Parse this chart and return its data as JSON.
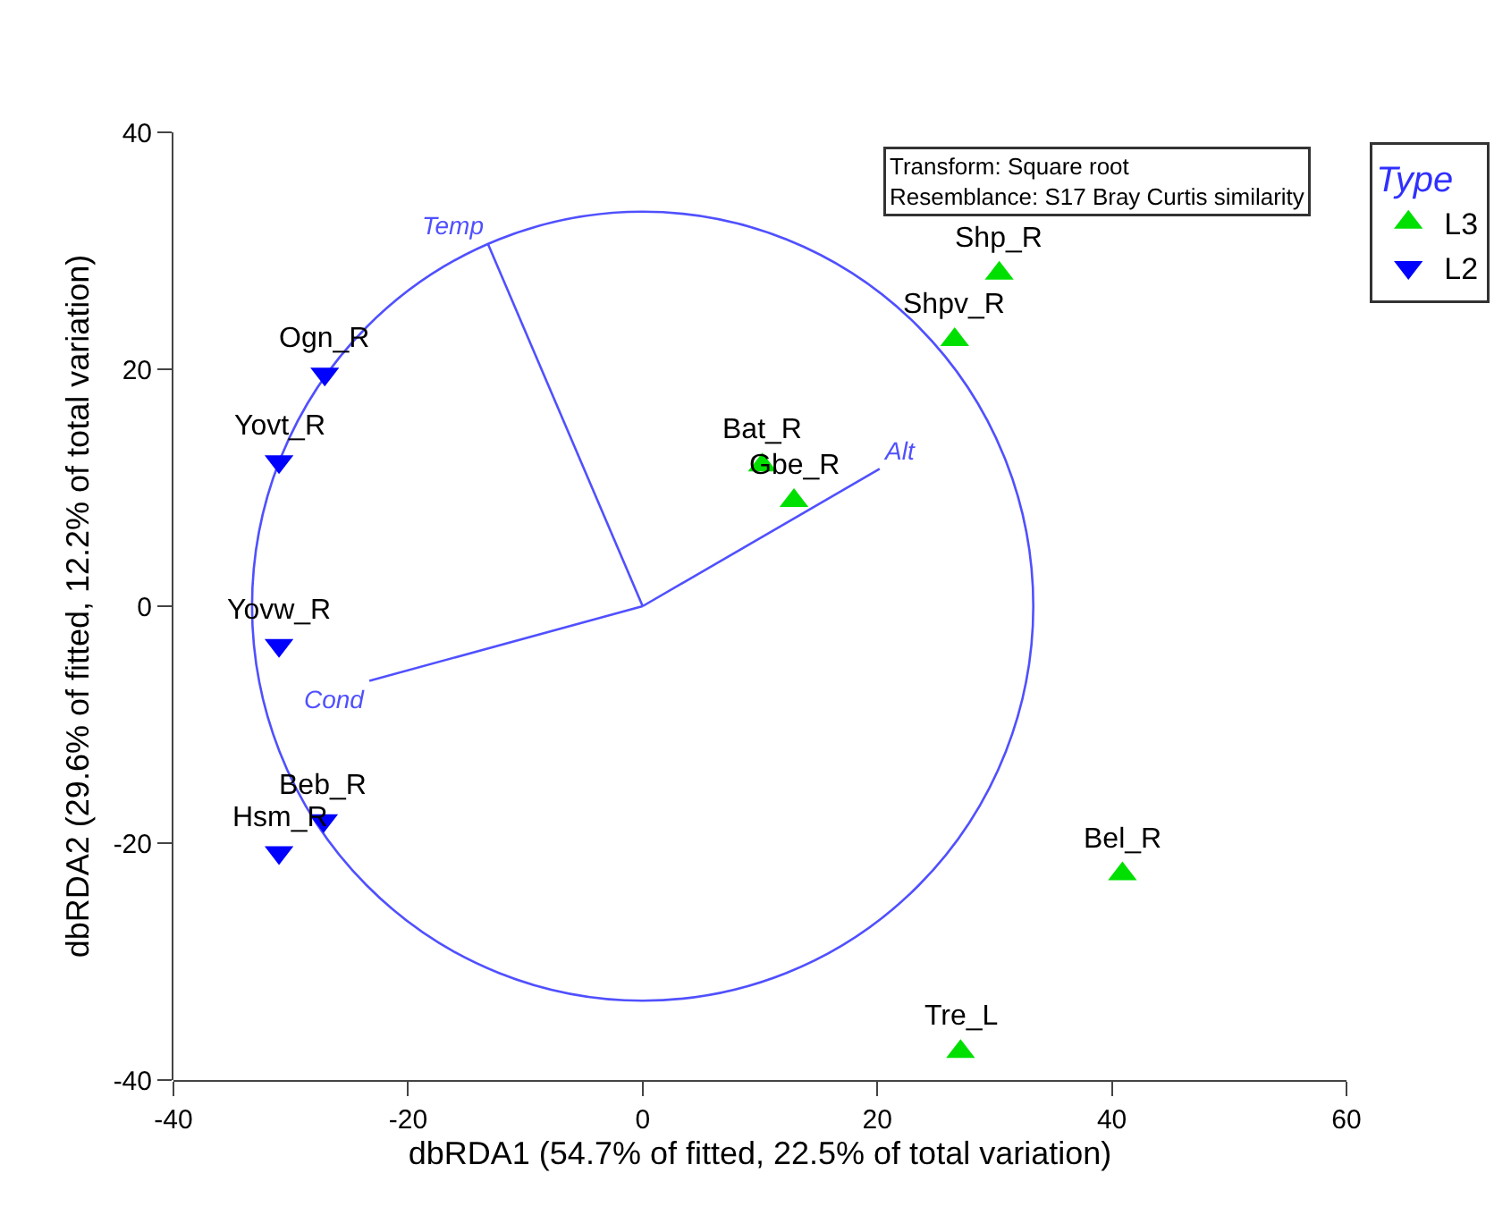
{
  "chart_data": {
    "type": "scatter",
    "xlabel": "dbRDA1 (54.7% of fitted, 22.5% of total variation)",
    "ylabel": "dbRDA2 (29.6% of fitted, 12.2% of total variation)",
    "legend_title": "Type",
    "legend": "top right",
    "grid": false,
    "xlim": [
      -40,
      60
    ],
    "xticks": [
      -40,
      -20,
      0,
      20,
      40,
      60
    ],
    "ylim": [
      -40,
      40
    ],
    "yticks": [
      -40,
      -20,
      0,
      20,
      40
    ],
    "series": [
      {
        "name": "L3",
        "type": "scatter",
        "marker": "triangle",
        "color": "#00e000",
        "x": [
          30.4,
          26.6,
          10.2,
          12.9,
          40.9,
          27.1
        ],
        "values": [
          28.1,
          22.5,
          11.9,
          8.9,
          -22.6,
          -37.6
        ]
      },
      {
        "name": "L2",
        "type": "scatter",
        "marker": "triangle-down",
        "color": "#0000ff",
        "x": [
          -27.1,
          -31.0,
          -31.0,
          -27.2,
          -31.0
        ],
        "values": [
          19.6,
          12.2,
          -3.3,
          -18.1,
          -20.8
        ]
      },
      {
        "name": "Temp",
        "type": "line",
        "color": "#5050ff",
        "x": [
          0,
          -13.2
        ],
        "values": [
          0,
          30.6
        ]
      },
      {
        "name": "Alt",
        "type": "line",
        "color": "#5050ff",
        "x": [
          0,
          20.2
        ],
        "values": [
          0,
          11.6
        ]
      },
      {
        "name": "Cond",
        "type": "line",
        "color": "#5050ff",
        "x": [
          0,
          -23.3
        ],
        "values": [
          0,
          -6.3
        ]
      }
    ],
    "annotations": [
      "Transform: Square root\nResemblance: S17 Bray Curtis similarity",
      {
        "text": "Shp_R",
        "x": 30.4,
        "y": 28.1
      },
      {
        "text": "Shpv_R",
        "x": 26.6,
        "y": 22.5
      },
      {
        "text": "Bat_R",
        "x": 10.2,
        "y": 11.9
      },
      {
        "text": "Gbe_R",
        "x": 12.9,
        "y": 8.9
      },
      {
        "text": "Bel_R",
        "x": 40.9,
        "y": -22.6
      },
      {
        "text": "Tre_L",
        "x": 27.1,
        "y": -37.6
      },
      {
        "text": "Ogn_R",
        "x": -27.1,
        "y": 19.6
      },
      {
        "text": "Yovt_R",
        "x": -31.0,
        "y": 12.2
      },
      {
        "text": "Yovw_R",
        "x": -31.0,
        "y": -3.3
      },
      {
        "text": "Beb_R",
        "x": -27.2,
        "y": -18.1
      },
      {
        "text": "Hsm_R",
        "x": -31.0,
        "y": -20.8
      }
    ]
  }
}
